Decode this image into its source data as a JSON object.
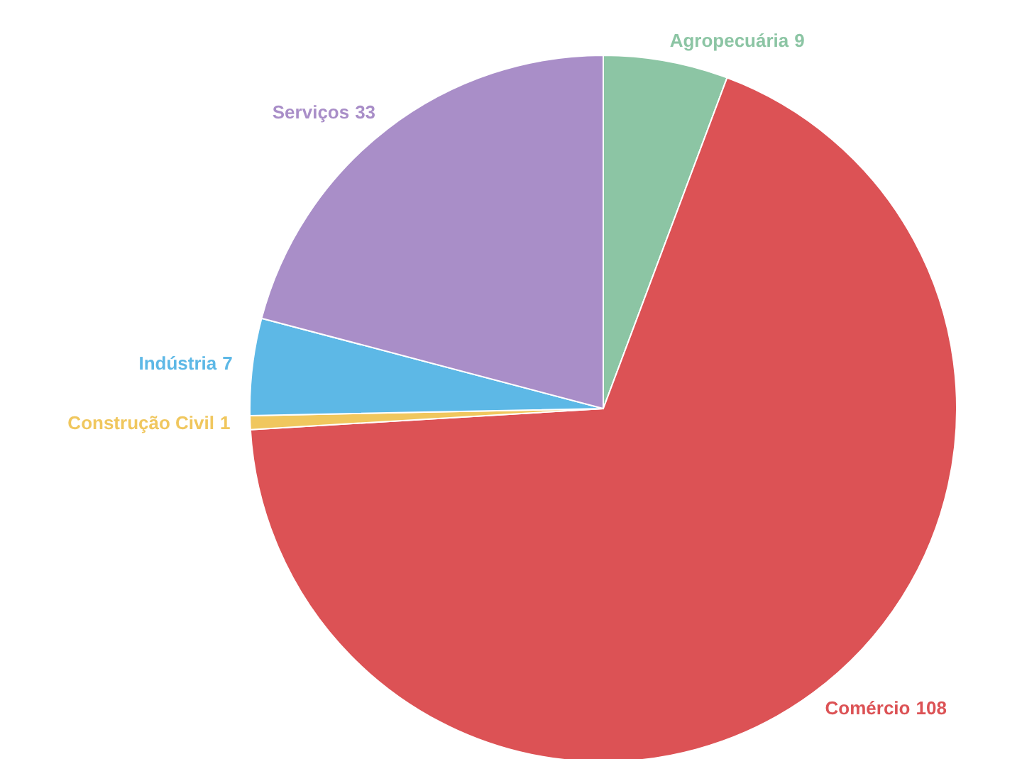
{
  "chart_data": {
    "type": "pie",
    "categories": [
      "Agropecuária",
      "Comércio",
      "Construção Civil",
      "Indústria",
      "Serviços"
    ],
    "values": [
      9,
      108,
      1,
      7,
      33
    ],
    "colors": [
      "#8cc5a4",
      "#dc5255",
      "#f0c75e",
      "#5db8e6",
      "#a98ec8"
    ],
    "data_labels": true,
    "legend": false
  }
}
